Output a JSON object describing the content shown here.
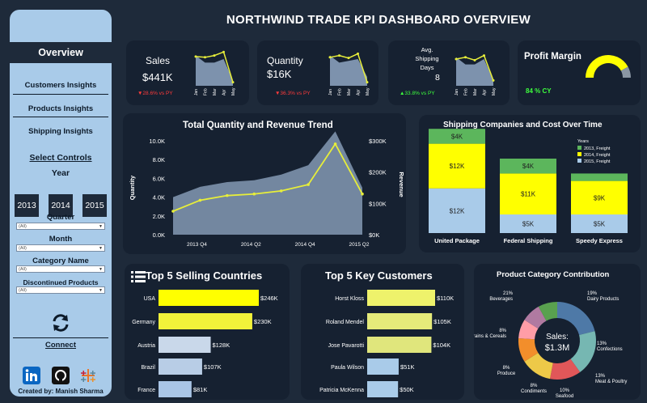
{
  "title": "NORTHWIND TRADE KPI DASHBOARD OVERVIEW",
  "sidebar": {
    "overview": "Overview",
    "links": [
      "Customers Insights",
      "Products Insights",
      "Shipping Insights"
    ],
    "select_controls": "Select Controls",
    "year_label": "Year",
    "years": [
      "2013",
      "2014",
      "2015"
    ],
    "quarter_label": "Quarter",
    "quarter_value": "(All)",
    "month_label": "Month",
    "month_value": "(All)",
    "category_label": "Category Name",
    "category_value": "(All)",
    "discontinued_label": "Discontinued Products",
    "discontinued_value": "(All)",
    "connect_label": "Connect",
    "social_icons": [
      "linkedin-icon",
      "github-icon",
      "tableau-icon"
    ],
    "created_by": "Created by: Manish Sharma"
  },
  "kpis": {
    "sales": {
      "label": "Sales",
      "value": "$441K",
      "change": "▼28.6% vs PY"
    },
    "quantity": {
      "label": "Quantity",
      "value": "$16K",
      "change": "▼36.3% vs PY"
    },
    "shipping": {
      "label1": "Avg.",
      "label2": "Shipping",
      "label3": "Days",
      "value": "8",
      "change": "▲33.8% vs PY"
    },
    "profit": {
      "label": "Profit Margin",
      "value": "84 % CY",
      "fraction": 0.84
    },
    "months": [
      "Jan",
      "Feb",
      "Mar",
      "Apr",
      "May"
    ]
  },
  "colors": {
    "bg": "#1e2a3a",
    "card": "#162131",
    "area": "#7d92ad",
    "line": "#e7ee3a",
    "yellow": "#ffff00",
    "green": "#5cb65c",
    "lightblue": "#a9cbe9"
  },
  "chart_data": [
    {
      "type": "area",
      "title": "Total Quantity and Revenue Trend",
      "ylabel": "Quantity",
      "y2label": "Revenue",
      "x_ticks": [
        "2013 Q4",
        "2014 Q2",
        "2014 Q4",
        "2015 Q2"
      ],
      "y_ticks": [
        "0.0K",
        "2.0K",
        "4.0K",
        "6.0K",
        "8.0K",
        "10.0K"
      ],
      "y2_ticks": [
        "$0K",
        "$100K",
        "$200K",
        "$300K"
      ],
      "ylim": [
        0,
        10000
      ],
      "y2lim": [
        0,
        300000
      ],
      "series": [
        {
          "name": "Quantity",
          "values": [
            4000,
            5100,
            5600,
            5800,
            6400,
            7400,
            11000,
            5000
          ]
        },
        {
          "name": "Revenue",
          "values": [
            75000,
            110000,
            125000,
            130000,
            140000,
            160000,
            290000,
            130000
          ]
        }
      ]
    },
    {
      "type": "bar",
      "title": "Shipping Companies and Cost Over Time",
      "legend_title": "Years",
      "legend": [
        "2013, Freight",
        "2014, Freight",
        "2015, Freight"
      ],
      "categories": [
        "United Package",
        "Federal Shipping",
        "Speedy Express"
      ],
      "series": [
        {
          "name": "2013, Freight",
          "values": [
            4,
            4,
            2
          ],
          "labels": [
            "$4K",
            "$4K",
            ""
          ]
        },
        {
          "name": "2014, Freight",
          "values": [
            12,
            11,
            9
          ],
          "labels": [
            "$12K",
            "$11K",
            "$9K"
          ]
        },
        {
          "name": "2015, Freight",
          "values": [
            12,
            5,
            5
          ],
          "labels": [
            "$12K",
            "$5K",
            "$5K"
          ]
        }
      ]
    },
    {
      "type": "bar",
      "title": "Top 5 Selling Countries",
      "categories": [
        "USA",
        "Germany",
        "Austria",
        "Brazil",
        "France"
      ],
      "values": [
        246,
        230,
        128,
        107,
        81
      ],
      "labels": [
        "$246K",
        "$230K",
        "$128K",
        "$107K",
        "$81K"
      ]
    },
    {
      "type": "bar",
      "title": "Top 5 Key Customers",
      "categories": [
        "Horst Kloss",
        "Roland Mendel",
        "Jose Pavarotti",
        "Paula Wilson",
        "Patricia McKenna"
      ],
      "values": [
        110,
        105,
        104,
        51,
        50
      ],
      "labels": [
        "$110K",
        "$105K",
        "$104K",
        "$51K",
        "$50K"
      ]
    },
    {
      "type": "pie",
      "title": "Product Category Contribution",
      "center_label": "Sales:",
      "center_value": "$1.3M",
      "slices": [
        {
          "name": "Beverages",
          "pct": "21%",
          "value": 21,
          "color": "#4e79a7"
        },
        {
          "name": "Dairy Products",
          "pct": "19%",
          "value": 19,
          "color": "#76b7b2"
        },
        {
          "name": "Confections",
          "pct": "13%",
          "value": 13,
          "color": "#e15759"
        },
        {
          "name": "Meat & Poultry",
          "pct": "13%",
          "value": 13,
          "color": "#edc948"
        },
        {
          "name": "Seafood",
          "pct": "10%",
          "value": 10,
          "color": "#f28e2b"
        },
        {
          "name": "Condiments",
          "pct": "8%",
          "value": 8,
          "color": "#ff9da7"
        },
        {
          "name": "Produce",
          "pct": "8%",
          "value": 8,
          "color": "#b07aa1"
        },
        {
          "name": "Grains & Cereals",
          "pct": "8%",
          "value": 8,
          "color": "#59a14f"
        }
      ]
    }
  ]
}
